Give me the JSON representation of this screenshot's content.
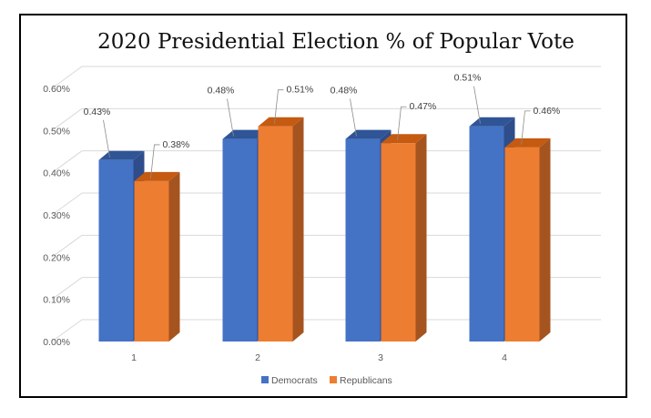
{
  "chart_data": {
    "type": "bar",
    "title": "2020 Presidential Election % of Popular Vote",
    "xlabel": "",
    "ylabel": "",
    "categories": [
      "1",
      "2",
      "3",
      "4"
    ],
    "series": [
      {
        "name": "Democrats",
        "values": [
          0.43,
          0.48,
          0.48,
          0.51
        ],
        "labels": [
          "0.43%",
          "0.48%",
          "0.48%",
          "0.51%"
        ]
      },
      {
        "name": "Republicans",
        "values": [
          0.38,
          0.51,
          0.47,
          0.46
        ],
        "labels": [
          "0.38%",
          "0.51%",
          "0.47%",
          "0.46%"
        ]
      }
    ],
    "ylim": [
      0,
      0.6
    ],
    "yticks": [
      "0.00%",
      "0.10%",
      "0.20%",
      "0.30%",
      "0.40%",
      "0.50%",
      "0.60%"
    ],
    "grid": true,
    "legend_position": "bottom",
    "colors": {
      "Democrats": "#4472c4",
      "Republicans": "#ed7d31"
    }
  }
}
